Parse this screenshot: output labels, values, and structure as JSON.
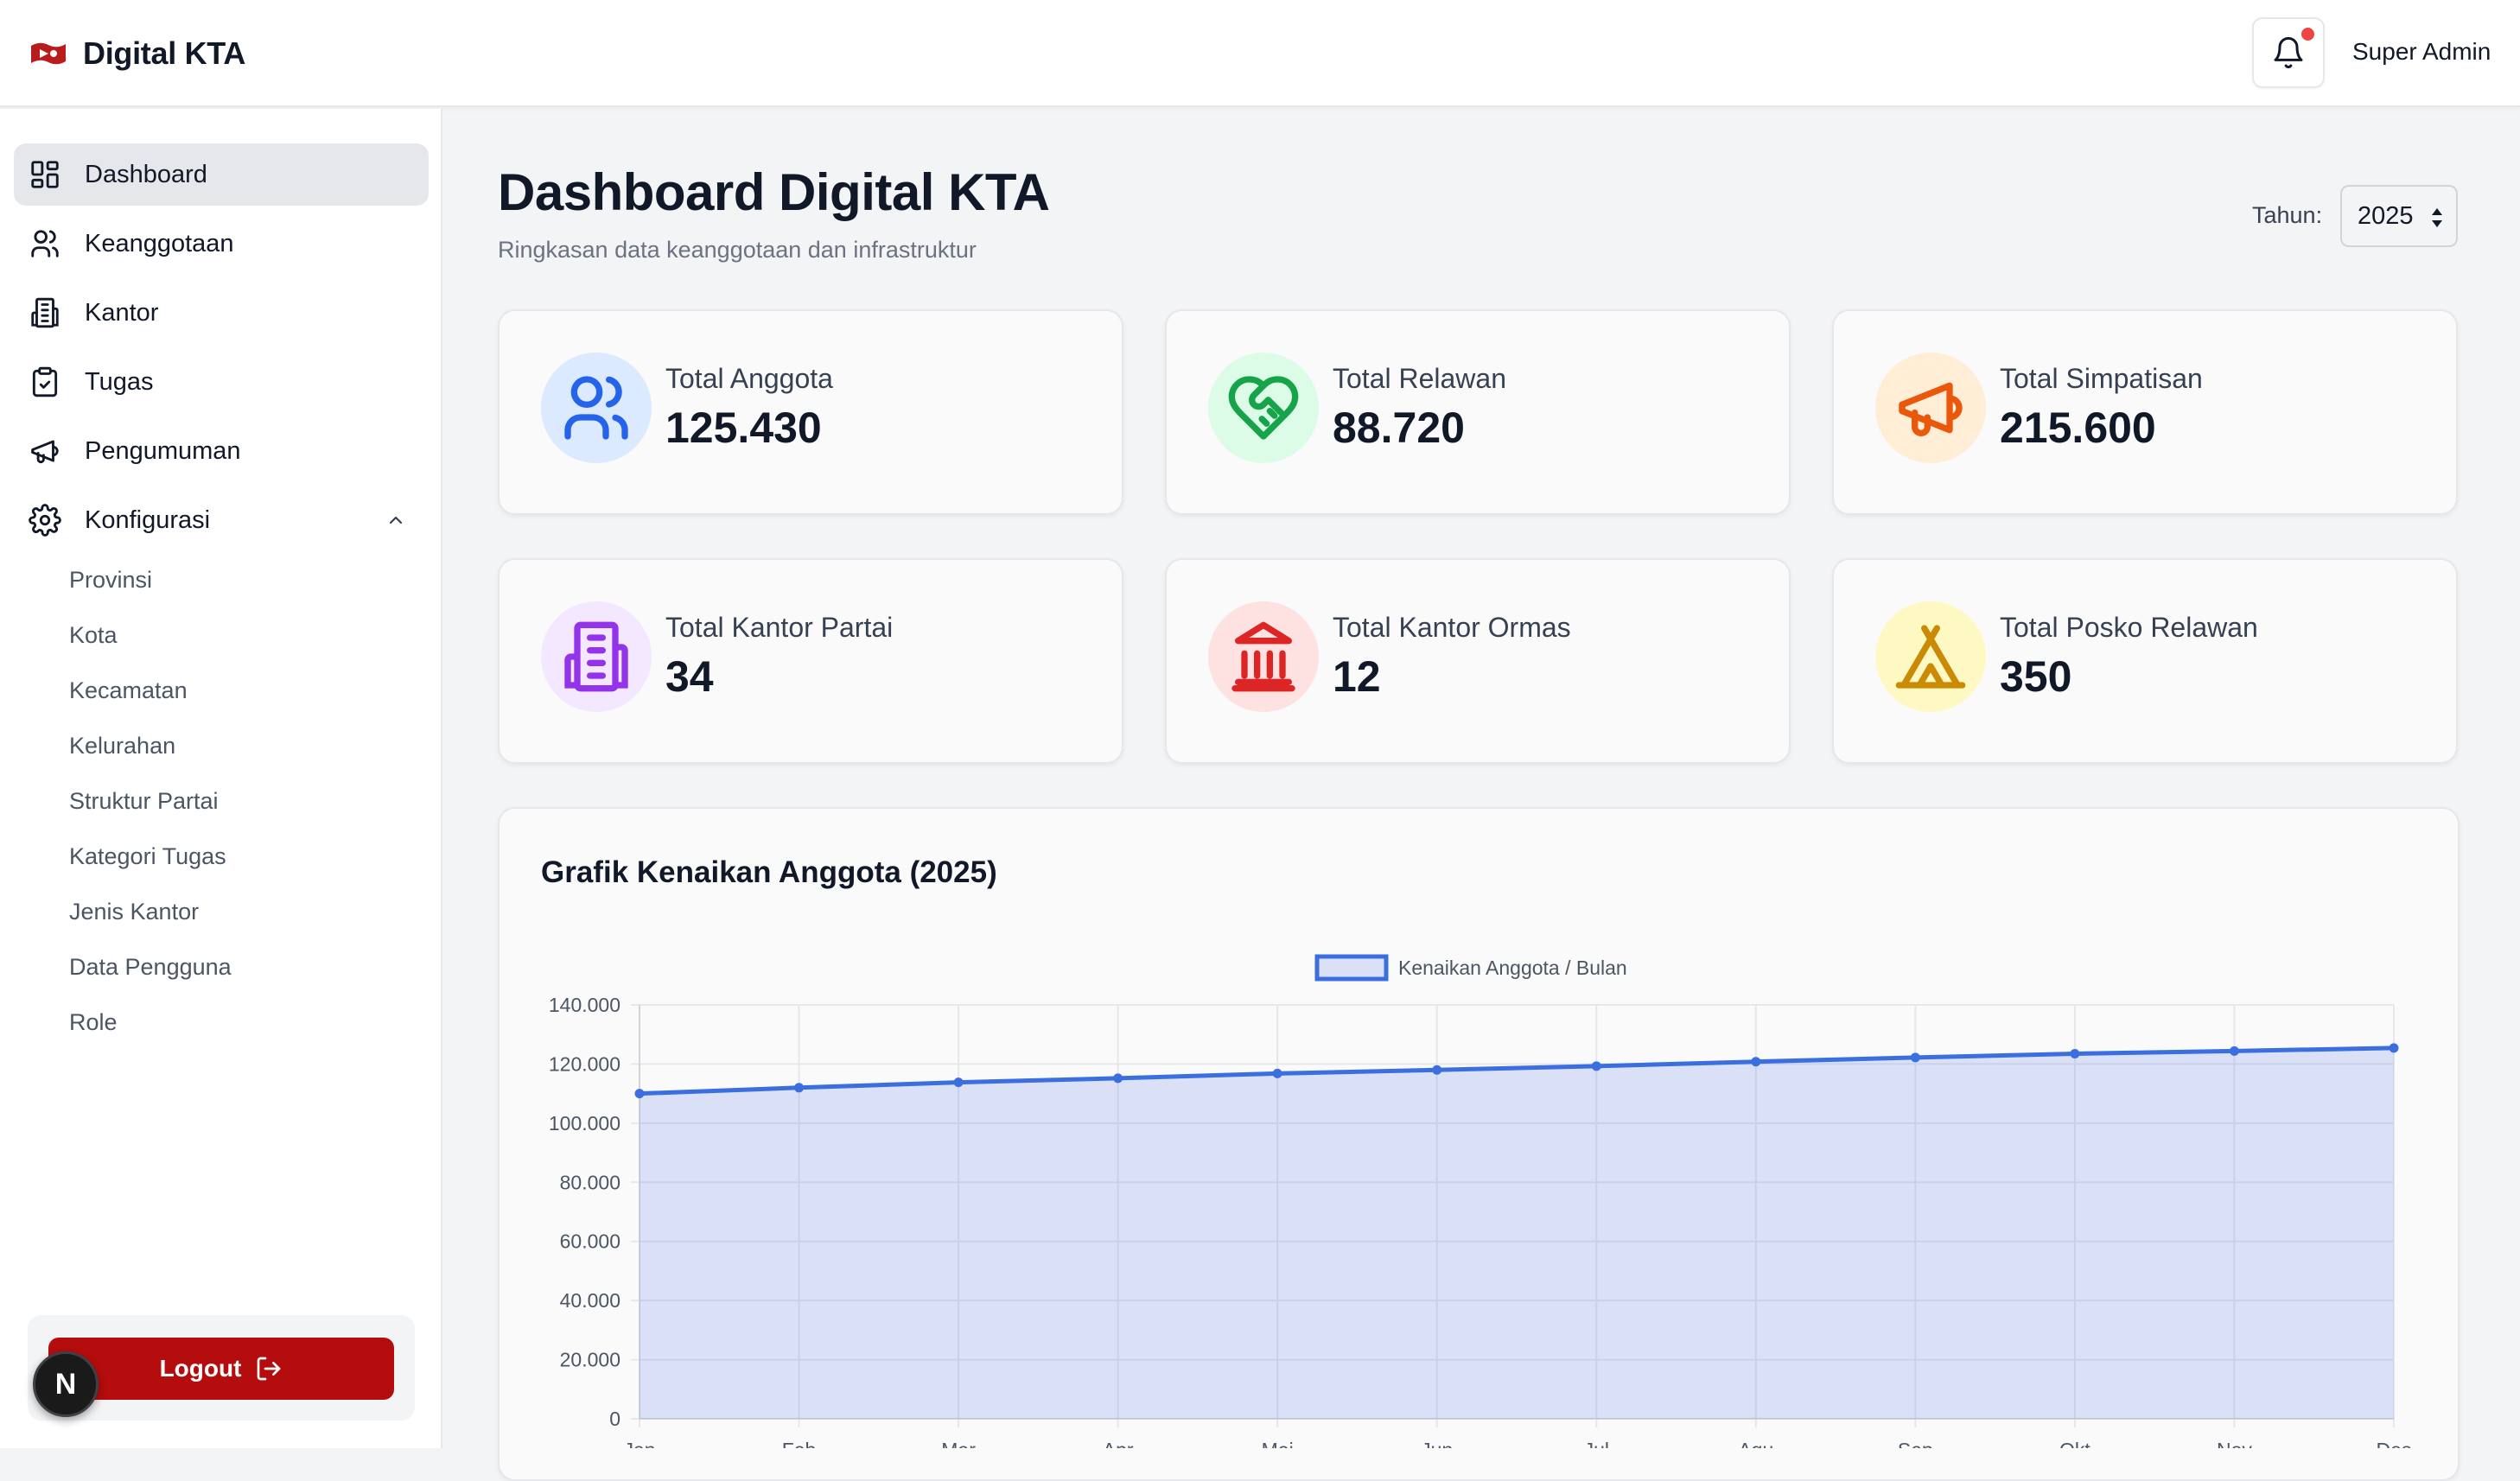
{
  "app": {
    "title": "Digital KTA",
    "user": "Super Admin"
  },
  "sidebar": {
    "items": [
      {
        "label": "Dashboard",
        "icon": "dashboard-icon"
      },
      {
        "label": "Keanggotaan",
        "icon": "users-icon"
      },
      {
        "label": "Kantor",
        "icon": "building-icon"
      },
      {
        "label": "Tugas",
        "icon": "clipboard-check-icon"
      },
      {
        "label": "Pengumuman",
        "icon": "megaphone-icon"
      },
      {
        "label": "Konfigurasi",
        "icon": "gear-icon"
      }
    ],
    "sub_items": [
      "Provinsi",
      "Kota",
      "Kecamatan",
      "Kelurahan",
      "Struktur Partai",
      "Kategori Tugas",
      "Jenis Kantor",
      "Data Pengguna",
      "Role"
    ],
    "logout_label": "Logout",
    "badge": "N"
  },
  "main": {
    "title": "Dashboard Digital KTA",
    "subtitle": "Ringkasan data keanggotaan dan infrastruktur",
    "year_label": "Tahun:",
    "year_value": "2025"
  },
  "stats": [
    {
      "label": "Total Anggota",
      "value": "125.430",
      "icon": "users-icon",
      "color": "#2563eb",
      "bg": "#dbeafe"
    },
    {
      "label": "Total Relawan",
      "value": "88.720",
      "icon": "handshake-heart-icon",
      "color": "#16a34a",
      "bg": "#dcfce7"
    },
    {
      "label": "Total Simpatisan",
      "value": "215.600",
      "icon": "megaphone-icon",
      "color": "#ea580c",
      "bg": "#ffedd5"
    },
    {
      "label": "Total Kantor Partai",
      "value": "34",
      "icon": "building-icon",
      "color": "#9333ea",
      "bg": "#f3e8ff"
    },
    {
      "label": "Total Kantor Ormas",
      "value": "12",
      "icon": "landmark-icon",
      "color": "#dc2626",
      "bg": "#fee2e2"
    },
    {
      "label": "Total Posko Relawan",
      "value": "350",
      "icon": "tent-icon",
      "color": "#ca8a04",
      "bg": "#fef9c3"
    }
  ],
  "colors": {
    "accent": "#3b6fe0",
    "logout": "#b50d0d",
    "notif_dot": "#ef4444"
  },
  "chart_data": {
    "type": "line",
    "title": "Grafik Kenaikan Anggota (2025)",
    "categories": [
      "Jan",
      "Feb",
      "Mar",
      "Apr",
      "Mei",
      "Jun",
      "Jul",
      "Agu",
      "Sep",
      "Okt",
      "Nov",
      "Des"
    ],
    "series": [
      {
        "name": "Kenaikan Anggota / Bulan",
        "values": [
          110000,
          112000,
          113800,
          115200,
          116800,
          118000,
          119300,
          120800,
          122200,
          123500,
          124400,
          125430
        ],
        "fill": true
      }
    ],
    "ylim": [
      0,
      140000
    ],
    "yticks": [
      "0",
      "20.000",
      "40.000",
      "60.000",
      "80.000",
      "100.000",
      "120.000",
      "140.000"
    ],
    "grid": true,
    "legend": "top-center"
  }
}
